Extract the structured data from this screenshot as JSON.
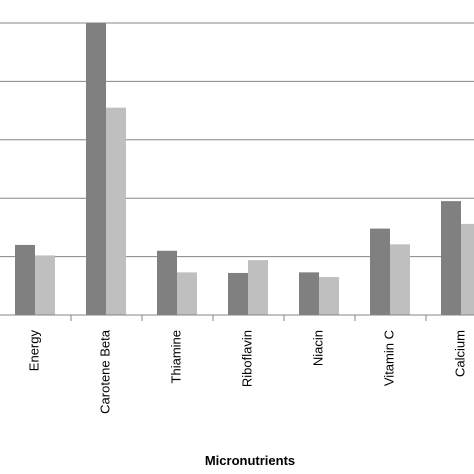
{
  "chart_data": {
    "type": "bar",
    "xlabel": "Micronutrients",
    "ylabel": "",
    "title": "",
    "categories": [
      "Energy",
      "Carotene Beta",
      "Thiamine",
      "Riboflavin",
      "Niacin",
      "Vitamin C",
      "Calcium"
    ],
    "series": [
      {
        "values": [
          1.2,
          5.0,
          1.1,
          0.72,
          0.73,
          1.48,
          1.95
        ],
        "color": "#808080"
      },
      {
        "values": [
          1.02,
          3.55,
          0.73,
          0.94,
          0.65,
          1.21,
          1.56
        ],
        "color": "#bfbfbf"
      }
    ],
    "ylim": [
      0,
      5.3
    ],
    "gridlines": [
      1,
      2,
      3,
      4,
      5
    ],
    "grid": true,
    "legend": "none"
  }
}
